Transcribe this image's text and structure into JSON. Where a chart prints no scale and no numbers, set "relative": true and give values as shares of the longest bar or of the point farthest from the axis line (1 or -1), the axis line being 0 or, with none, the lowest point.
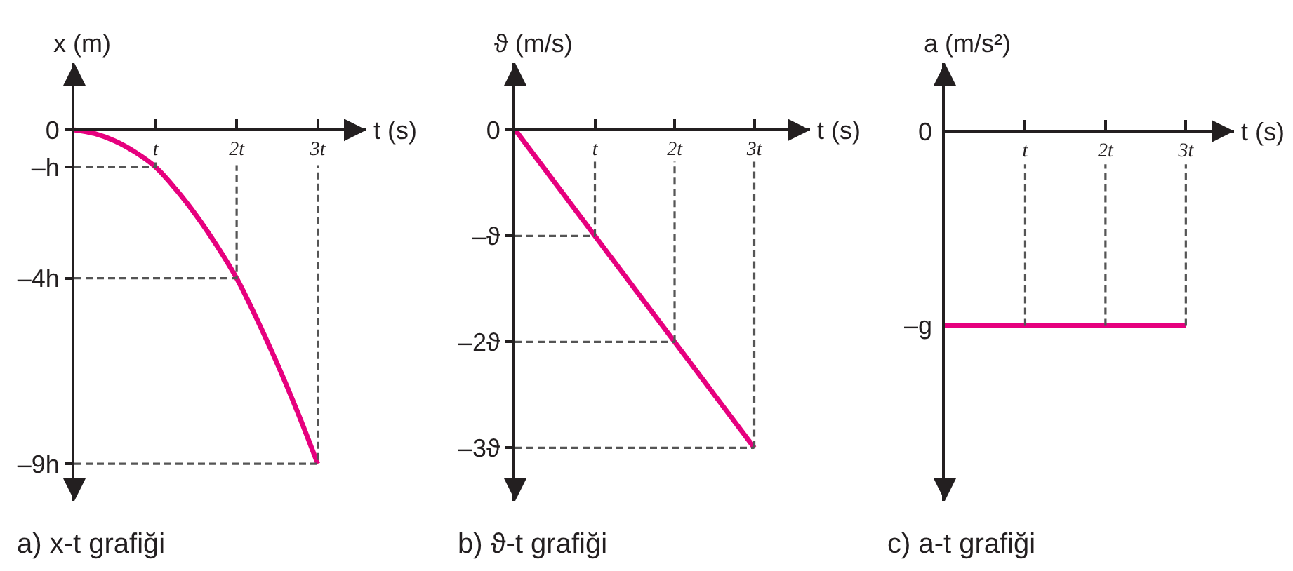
{
  "chart_data": [
    {
      "type": "line",
      "title": "a) x-t grafiği",
      "xlabel": "t (s)",
      "ylabel": "x (m)",
      "line_style": "solid",
      "series": [
        {
          "color": "#e6007e",
          "x": [
            0,
            0.25,
            0.5,
            0.75,
            1,
            1.25,
            1.5,
            1.75,
            2,
            2.25,
            2.5,
            2.75,
            3
          ],
          "values": [
            0,
            -0.1,
            -0.3,
            -0.6,
            -1,
            -1.6,
            -2.3,
            -3.1,
            -4,
            -5.1,
            -6.3,
            -7.6,
            -9
          ]
        },
        {
          "color": "#555555",
          "line_style": "dashed",
          "x": [
            0,
            1,
            1
          ],
          "values": [
            -1,
            -1,
            -0.85
          ]
        },
        {
          "color": "#555555",
          "line_style": "dashed",
          "x": [
            0,
            2,
            2
          ],
          "values": [
            -4,
            -4,
            -0.95
          ]
        },
        {
          "color": "#555555",
          "line_style": "dashed",
          "x": [
            0,
            3,
            3
          ],
          "values": [
            -9,
            -9,
            -0.95
          ]
        }
      ],
      "xlim": [
        0,
        3.6
      ],
      "ylim": [
        -10,
        1.8
      ],
      "xticks": [
        {
          "value": 1,
          "label": "t"
        },
        {
          "value": 2,
          "label": "2t"
        },
        {
          "value": 3,
          "label": "3t"
        }
      ],
      "yticks": [
        0,
        {
          "value": -1,
          "label": "–h"
        },
        {
          "value": -4,
          "label": "–4h"
        },
        {
          "value": -9,
          "label": "–9h"
        }
      ]
    },
    {
      "type": "line",
      "title": "b) ϑ-t grafiği",
      "xlabel": "t (s)",
      "ylabel": "ϑ (m/s)",
      "line_style": "solid",
      "series": [
        {
          "color": "#e6007e",
          "x": [
            0,
            3
          ],
          "values": [
            0,
            -3
          ]
        },
        {
          "color": "#555555",
          "line_style": "dashed",
          "x": [
            0,
            1
          ],
          "values": [
            -1,
            -1
          ]
        },
        {
          "color": "#555555",
          "line_style": "dashed",
          "x": [
            1,
            1
          ],
          "values": [
            -1,
            -0.3
          ]
        },
        {
          "color": "#555555",
          "line_style": "dashed",
          "x": [
            0,
            2
          ],
          "values": [
            -2,
            -2
          ]
        },
        {
          "color": "#555555",
          "line_style": "dashed",
          "x": [
            2,
            2
          ],
          "values": [
            -2,
            -0.3
          ]
        },
        {
          "color": "#555555",
          "line_style": "dashed",
          "x": [
            0,
            3
          ],
          "values": [
            -3,
            -3
          ]
        },
        {
          "color": "#555555",
          "line_style": "dashed",
          "x": [
            3,
            3
          ],
          "values": [
            -3,
            -0.3
          ]
        }
      ],
      "xlim": [
        0,
        3.7
      ],
      "ylim": [
        -3.5,
        0.63
      ],
      "xticks": [
        {
          "value": 1,
          "label": "t"
        },
        {
          "value": 2,
          "label": "2t"
        },
        {
          "value": 3,
          "label": "3t"
        }
      ],
      "yticks": [
        0,
        {
          "value": -1,
          "label": "–ϑ"
        },
        {
          "value": -2,
          "label": "–2ϑ"
        },
        {
          "value": -3,
          "label": "–3ϑ"
        }
      ]
    },
    {
      "type": "line",
      "title": "c) a-t grafiği",
      "xlabel": "t (s)",
      "ylabel": "a (m/s²)",
      "line_style": "solid",
      "relative": true,
      "series": [
        {
          "color": "#e6007e",
          "x": [
            0,
            3
          ],
          "values": [
            -1,
            -1
          ]
        },
        {
          "color": "#555555",
          "line_style": "dashed",
          "x": [
            1,
            1
          ],
          "values": [
            -1,
            -0.17
          ]
        },
        {
          "color": "#555555",
          "line_style": "dashed",
          "x": [
            2,
            2
          ],
          "values": [
            -1,
            -0.17
          ]
        },
        {
          "color": "#555555",
          "line_style": "dashed",
          "x": [
            3,
            3
          ],
          "values": [
            -1,
            -0.17
          ]
        }
      ],
      "xlim": [
        0,
        3.6
      ],
      "xticks": [
        {
          "value": 1,
          "label": "t"
        },
        {
          "value": 2,
          "label": "2t"
        },
        {
          "value": 3,
          "label": "3t"
        }
      ],
      "annotations": [
        "0",
        {
          "text": "–g",
          "x": 0,
          "y": -1
        }
      ]
    }
  ]
}
